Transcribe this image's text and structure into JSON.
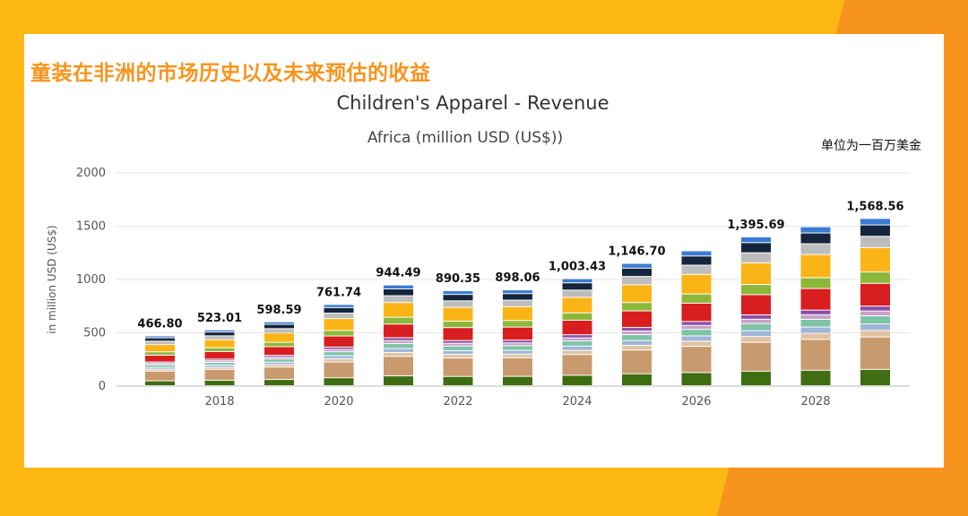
{
  "slide_title": "童装在非洲的市场历史以及未来预估的收益",
  "unit_note": "单位为一百万美金",
  "colors": {
    "background": "#FDB813",
    "accent": "#F7941D",
    "title": "#F7941D"
  },
  "chart_data": {
    "type": "bar",
    "stacked": true,
    "title": "Children's Apparel - Revenue",
    "subtitle": "Africa (million USD (US$))",
    "ylabel": "in million USD (US$)",
    "xlabel": "",
    "ylim": [
      0,
      2000
    ],
    "yticks": [
      "0",
      "500",
      "1000",
      "1500",
      "2000"
    ],
    "years": [
      2017,
      2018,
      2019,
      2020,
      2021,
      2022,
      2023,
      2024,
      2025,
      2026,
      2027,
      2028,
      2029
    ],
    "xtick_labels": [
      {
        "index": 1,
        "label": "2018"
      },
      {
        "index": 3,
        "label": "2020"
      },
      {
        "index": 5,
        "label": "2022"
      },
      {
        "index": 7,
        "label": "2024"
      },
      {
        "index": 9,
        "label": "2026"
      },
      {
        "index": 11,
        "label": "2028"
      }
    ],
    "totals": [
      466.8,
      523.01,
      598.59,
      761.74,
      944.49,
      890.35,
      898.06,
      1003.43,
      1146.7,
      1265.0,
      1395.69,
      1490.0,
      1568.56
    ],
    "total_labels": [
      "466.80",
      "523.01",
      "598.59",
      "761.74",
      "944.49",
      "890.35",
      "898.06",
      "1,003.43",
      "1,146.70",
      "",
      "1,395.69",
      "",
      "1,568.56"
    ],
    "segment_colors": [
      "#3F6E12",
      "#C99A6E",
      "#E0C3A5",
      "#9DB5D8",
      "#7CC4A5",
      "#C8A2C8",
      "#8A4FA8",
      "#D81E1E",
      "#8CB83A",
      "#FBB416",
      "#BDBDBD",
      "#14253D",
      "#3A7BD5"
    ],
    "segment_shares": [
      0.1,
      0.2,
      0.04,
      0.04,
      0.05,
      0.03,
      0.03,
      0.14,
      0.07,
      0.15,
      0.07,
      0.07,
      0.04
    ]
  }
}
